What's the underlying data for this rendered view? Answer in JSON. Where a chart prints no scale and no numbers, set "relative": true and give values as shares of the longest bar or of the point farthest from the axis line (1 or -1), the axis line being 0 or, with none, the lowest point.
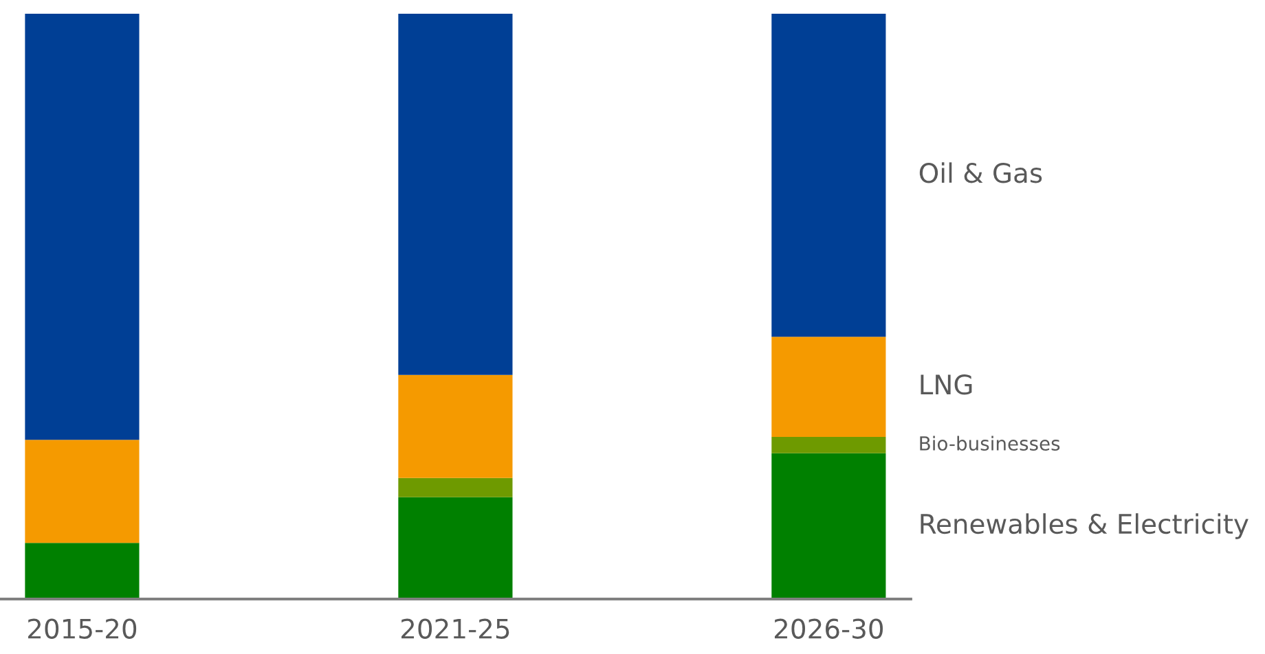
{
  "chart_data": {
    "type": "bar",
    "stacked": true,
    "relative": true,
    "legend": false,
    "grid": false,
    "categories": [
      "2015-20",
      "2021-25",
      "2026-30"
    ],
    "series": [
      {
        "name": "Renewables & Electricity",
        "color": "#008000",
        "values": [
          0.096,
          0.174,
          0.249
        ]
      },
      {
        "name": "Bio-businesses",
        "color": "#6e9a00",
        "values": [
          0,
          0.033,
          0.028
        ]
      },
      {
        "name": "LNG",
        "color": "#f59a00",
        "values": [
          0.176,
          0.176,
          0.171
        ]
      },
      {
        "name": "Oil & Gas",
        "color": "#003f95",
        "values": [
          0.728,
          0.617,
          0.552
        ]
      }
    ]
  }
}
